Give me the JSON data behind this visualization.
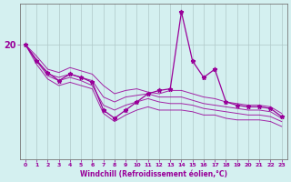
{
  "xlabel": "Windchill (Refroidissement éolien,°C)",
  "bg_color": "#d4f0f0",
  "line_color": "#990099",
  "grid_color": "#b0c8c8",
  "xmin": -0.5,
  "xmax": 23.5,
  "ymin": 13.0,
  "ymax": 22.5,
  "yticks": [
    20
  ],
  "xticks": [
    0,
    1,
    2,
    3,
    4,
    5,
    6,
    7,
    8,
    9,
    10,
    11,
    12,
    13,
    14,
    15,
    16,
    17,
    18,
    19,
    20,
    21,
    22,
    23
  ],
  "series": [
    [
      20.0,
      19.3,
      18.5,
      18.3,
      18.6,
      18.4,
      18.2,
      17.5,
      17.0,
      17.2,
      17.3,
      17.1,
      17.0,
      17.2,
      17.2,
      17.0,
      16.8,
      16.7,
      16.5,
      16.4,
      16.3,
      16.3,
      16.2,
      15.8
    ],
    [
      20.0,
      19.1,
      18.2,
      18.0,
      18.2,
      18.0,
      17.8,
      16.8,
      16.5,
      16.8,
      16.9,
      17.0,
      16.8,
      16.8,
      16.8,
      16.6,
      16.4,
      16.3,
      16.2,
      16.1,
      16.0,
      16.0,
      15.9,
      15.5
    ],
    [
      20.0,
      19.0,
      18.1,
      17.8,
      18.0,
      17.8,
      17.5,
      16.3,
      16.0,
      16.3,
      16.5,
      16.7,
      16.5,
      16.4,
      16.4,
      16.3,
      16.1,
      16.0,
      15.9,
      15.8,
      15.7,
      15.7,
      15.6,
      15.3
    ],
    [
      20.0,
      18.8,
      17.9,
      17.5,
      17.7,
      17.5,
      17.3,
      15.8,
      15.3,
      15.7,
      16.0,
      16.2,
      16.0,
      16.0,
      16.0,
      15.9,
      15.7,
      15.7,
      15.5,
      15.4,
      15.4,
      15.4,
      15.3,
      15.0
    ]
  ],
  "main_series": [
    20.0,
    19.0,
    18.3,
    17.8,
    18.2,
    18.0,
    17.7,
    16.0,
    15.5,
    16.0,
    16.5,
    17.0,
    17.2,
    17.3,
    22.0,
    19.0,
    18.0,
    18.5,
    16.5,
    16.3,
    16.2,
    16.2,
    16.1,
    15.6
  ]
}
